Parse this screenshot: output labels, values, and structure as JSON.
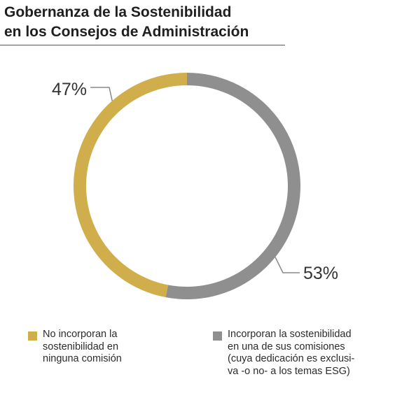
{
  "title_lines": [
    "Gobernanza de la Sostenibilidad",
    "en los Consejos de Administración"
  ],
  "chart_data": {
    "type": "pie",
    "donut": true,
    "categories": [
      "No incorporan la sostenibilidad en ninguna comisión",
      "Incorporan la sostenibilidad en una de sus comisiones (cuya dedicación es exclusiva -o no- a los temas ESG)"
    ],
    "values": [
      47,
      53
    ],
    "unit": "%",
    "data_labels": [
      "47%",
      "53%"
    ],
    "colors": [
      "#D1AE4C",
      "#8F8F8F"
    ],
    "legend_position": "bottom",
    "legend": [
      {
        "color": "#D1AE4C",
        "lines": [
          "No incorporan la",
          "sostenibilidad en",
          "ninguna comisión"
        ]
      },
      {
        "color": "#8F8F8F",
        "lines": [
          "Incorporan la sostenibilidad",
          "en una de sus comisiones",
          "(cuya dedicación es exclusi-",
          "va -o no- a los temas ESG)"
        ]
      }
    ]
  }
}
